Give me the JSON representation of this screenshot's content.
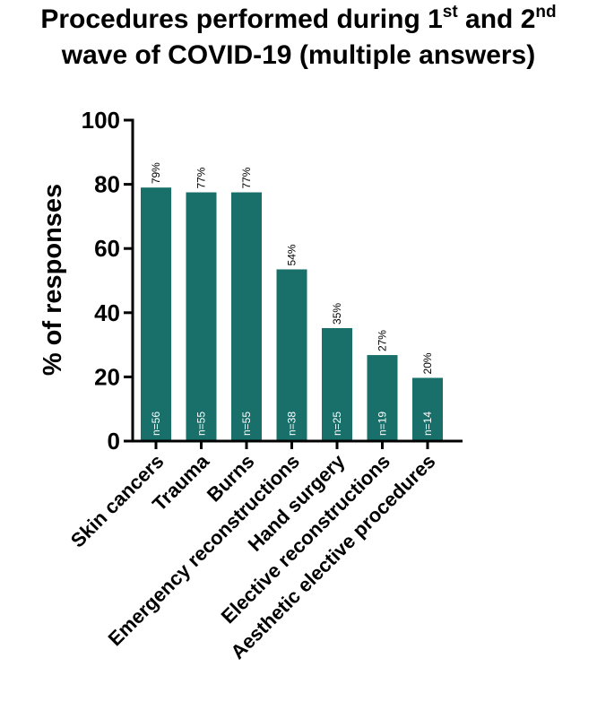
{
  "title": {
    "line1_main": "Procedures performed during 1",
    "line1_sup1": "st",
    "line1_mid": " and 2",
    "line1_sup2": "nd",
    "line2": "wave of COVID-19 (multiple answers)"
  },
  "colors": {
    "bar": "#19706b",
    "axis": "#000000",
    "count_text": "#ffffff"
  },
  "chart_data": {
    "type": "bar",
    "title": "Procedures performed during 1st and 2nd wave of COVID-19 (multiple answers)",
    "xlabel": "",
    "ylabel": "% of responses",
    "ylim": [
      0,
      100
    ],
    "yticks": [
      "0",
      "20",
      "40",
      "60",
      "80",
      "100"
    ],
    "grid": false,
    "categories": [
      "Skin cancers",
      "Trauma",
      "Burns",
      "Emergency reconstructions",
      "Hand surgery",
      "Elective reconstructions",
      "Aesthetic elective procedures"
    ],
    "values": [
      79,
      77.5,
      77.5,
      53.5,
      35.2,
      26.8,
      19.7
    ],
    "value_labels": [
      "79%",
      "77%",
      "77%",
      "54%",
      "35%",
      "27%",
      "20%"
    ],
    "count_labels": [
      "n=56",
      "n=55",
      "n=55",
      "n=38",
      "n=25",
      "n=19",
      "n=14"
    ]
  }
}
